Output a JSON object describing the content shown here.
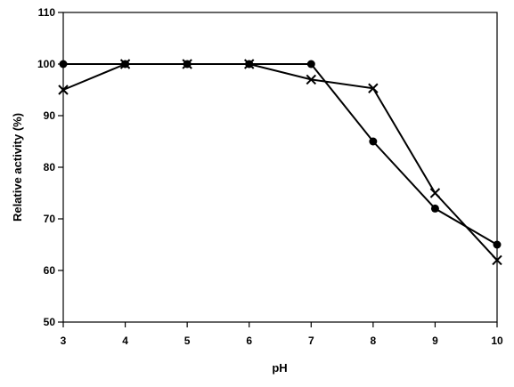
{
  "chart_data": {
    "type": "line",
    "xlabel": "pH",
    "ylabel": "Relative activity (%)",
    "xlim": [
      3,
      10
    ],
    "ylim": [
      50,
      110
    ],
    "x_ticks": [
      3,
      4,
      5,
      6,
      7,
      8,
      9,
      10
    ],
    "y_ticks": [
      50,
      60,
      70,
      80,
      90,
      100,
      110
    ],
    "grid": false,
    "colors": {
      "series": "#000000",
      "axis": "#000000"
    },
    "series": [
      {
        "marker": "circle",
        "x": [
          3,
          4,
          5,
          6,
          7,
          8,
          9,
          10
        ],
        "y": [
          100,
          100,
          100,
          100,
          100,
          85,
          72,
          65
        ]
      },
      {
        "marker": "x",
        "x": [
          3,
          4,
          5,
          6,
          7,
          8,
          9,
          10
        ],
        "y": [
          95,
          100,
          100,
          100,
          97,
          95.3,
          75,
          62
        ]
      }
    ]
  }
}
